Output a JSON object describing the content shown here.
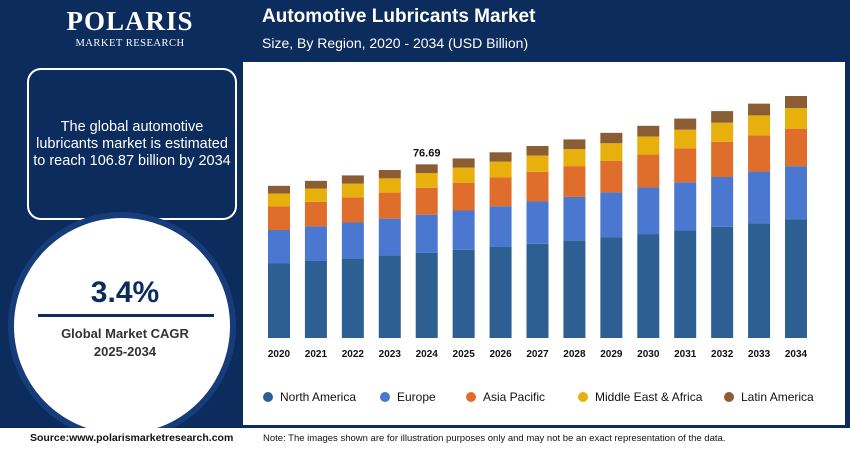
{
  "header": {
    "logo": "POLARIS",
    "logo_subtitle": "MARKET RESEARCH"
  },
  "callout": "The global automotive lubricants market is estimated to reach 106.87 billion by 2034",
  "cagr": {
    "value": "3.4%",
    "label": "Global Market CAGR",
    "period": "2025-2034"
  },
  "footer": {
    "source": "Source:www.polarismarketresearch.com",
    "note": "Note: The images shown are for illustration purposes only and may not be an exact representation of the data."
  },
  "chart_data": {
    "type": "stacked_bar",
    "title": "Automotive Lubricants Market",
    "subtitle": "Size, By Region, 2020 - 2034 (USD Billion)",
    "categories": [
      "2020",
      "2021",
      "2022",
      "2023",
      "2024",
      "2025",
      "2026",
      "2027",
      "2028",
      "2029",
      "2030",
      "2031",
      "2032",
      "2033",
      "2034"
    ],
    "series": [
      {
        "name": "North America",
        "color": "#2d5f93",
        "values": [
          32.9,
          34.0,
          35.2,
          36.4,
          37.58,
          38.9,
          40.2,
          41.6,
          43.0,
          44.4,
          45.9,
          47.5,
          49.1,
          50.7,
          52.37
        ]
      },
      {
        "name": "Europe",
        "color": "#4a77cf",
        "values": [
          14.8,
          15.3,
          15.8,
          16.3,
          16.87,
          17.4,
          18.0,
          18.7,
          19.3,
          19.9,
          20.6,
          21.3,
          22.0,
          22.8,
          23.51
        ]
      },
      {
        "name": "Asia Pacific",
        "color": "#df6d2b",
        "values": [
          10.4,
          10.8,
          11.1,
          11.5,
          11.89,
          12.3,
          12.7,
          13.1,
          13.6,
          14.0,
          14.5,
          15.0,
          15.5,
          16.0,
          16.56
        ]
      },
      {
        "name": "Middle East & Africa",
        "color": "#e8b00c",
        "values": [
          5.7,
          5.9,
          6.1,
          6.3,
          6.52,
          6.7,
          7.0,
          7.2,
          7.5,
          7.7,
          8.0,
          8.2,
          8.5,
          8.8,
          9.08
        ]
      },
      {
        "name": "Latin America",
        "color": "#8a5d35",
        "values": [
          3.4,
          3.4,
          3.6,
          3.7,
          3.83,
          4.0,
          4.1,
          4.2,
          4.3,
          4.6,
          4.7,
          4.9,
          5.1,
          5.2,
          5.35
        ]
      }
    ],
    "annotations": [
      {
        "x": "2024",
        "value": 76.69
      }
    ]
  }
}
